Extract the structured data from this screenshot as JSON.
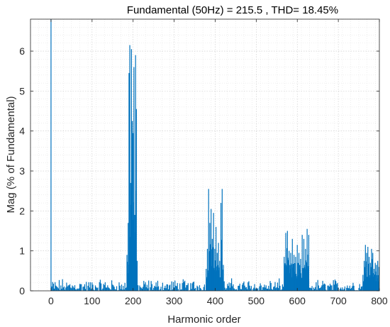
{
  "chart_data": {
    "type": "bar",
    "title": "Fundamental (50Hz) = 215.5 , THD= 18.45%",
    "xlabel": "Harmonic order",
    "ylabel": "Mag (% of Fundamental)",
    "xlim": [
      -50,
      800
    ],
    "ylim": [
      0,
      6.8
    ],
    "xticks": [
      0,
      100,
      200,
      300,
      400,
      500,
      600,
      700,
      800
    ],
    "yticks": [
      0,
      1,
      2,
      3,
      4,
      5,
      6
    ],
    "grid": true,
    "minor_grid": true,
    "color": "#0072BD",
    "fundamental": {
      "x": 0,
      "value": 100
    },
    "baseline_noise_max": 0.35,
    "peak_clusters": [
      {
        "x": [
          185,
          188,
          190,
          192,
          194,
          196,
          198,
          200,
          202,
          204,
          206,
          208,
          210
        ],
        "values": [
          0.9,
          1.7,
          5.45,
          6.15,
          2.7,
          6.05,
          4.25,
          3.95,
          5.6,
          1.9,
          5.9,
          4.55,
          0.75
        ]
      },
      {
        "x": [
          378,
          381,
          384,
          387,
          390,
          393,
          396,
          399,
          402,
          405,
          408,
          411,
          414,
          417,
          420
        ],
        "values": [
          0.55,
          1.05,
          2.55,
          1.7,
          2.05,
          1.3,
          1.95,
          1.05,
          1.6,
          0.95,
          1.2,
          0.75,
          2.2,
          2.55,
          0.65
        ]
      },
      {
        "x": [
          568,
          572,
          576,
          580,
          584,
          588,
          592,
          596,
          600,
          604,
          608,
          612,
          616,
          620,
          624,
          628
        ],
        "values": [
          0.85,
          1.45,
          1.5,
          1.0,
          0.95,
          1.3,
          0.9,
          0.85,
          1.15,
          0.95,
          0.8,
          1.4,
          1.3,
          1.05,
          1.55,
          1.4
        ]
      },
      {
        "x": [
          760,
          763,
          766,
          769,
          772,
          775,
          778,
          781,
          784,
          787,
          790,
          793,
          796,
          799
        ],
        "values": [
          0.4,
          0.75,
          1.15,
          0.95,
          1.1,
          0.85,
          0.7,
          1.05,
          0.95,
          0.55,
          0.7,
          0.65,
          0.75,
          0.6
        ]
      }
    ]
  }
}
